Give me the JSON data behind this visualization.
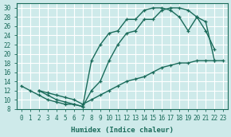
{
  "xlabel": "Humidex (Indice chaleur)",
  "bg_color": "#ceeaea",
  "grid_color": "#ffffff",
  "line_color": "#1a6b5a",
  "xlim": [
    -0.5,
    23.5
  ],
  "ylim": [
    8,
    31
  ],
  "xticks": [
    0,
    1,
    2,
    3,
    4,
    5,
    6,
    7,
    8,
    9,
    10,
    11,
    12,
    13,
    14,
    15,
    16,
    17,
    18,
    19,
    20,
    21,
    22,
    23
  ],
  "yticks": [
    8,
    10,
    12,
    14,
    16,
    18,
    20,
    22,
    24,
    26,
    28,
    30
  ],
  "line1_x": [
    0,
    1,
    2,
    3,
    4,
    5,
    6,
    7,
    8,
    9,
    10,
    11,
    12,
    13,
    14,
    15,
    16,
    17,
    18,
    19,
    20,
    21,
    22
  ],
  "line1_y": [
    13,
    12,
    11,
    10,
    9.5,
    9,
    9,
    8.5,
    12,
    14,
    18.5,
    22,
    24.5,
    25,
    27.5,
    27.5,
    29.5,
    30,
    30,
    29.5,
    28,
    25,
    21
  ],
  "line2_x": [
    2,
    3,
    4,
    5,
    6,
    7,
    8,
    9,
    10,
    11,
    12,
    13,
    14,
    15,
    16,
    17,
    18,
    19,
    20,
    21,
    22
  ],
  "line2_y": [
    12,
    11,
    10,
    9.5,
    9,
    8.5,
    18.5,
    22,
    24.5,
    25,
    27.5,
    27.5,
    29.5,
    30,
    30,
    29.5,
    28,
    25,
    28,
    27,
    18.5
  ],
  "line3_x": [
    2,
    3,
    4,
    5,
    6,
    7,
    8,
    9,
    10,
    11,
    12,
    13,
    14,
    15,
    16,
    17,
    18,
    19,
    20,
    21,
    22,
    23
  ],
  "line3_y": [
    12,
    11.5,
    11,
    10.5,
    10,
    9,
    10,
    11,
    12,
    13,
    14,
    14.5,
    15,
    16,
    17,
    17.5,
    18,
    18,
    18.5,
    18.5,
    18.5,
    18.5
  ]
}
